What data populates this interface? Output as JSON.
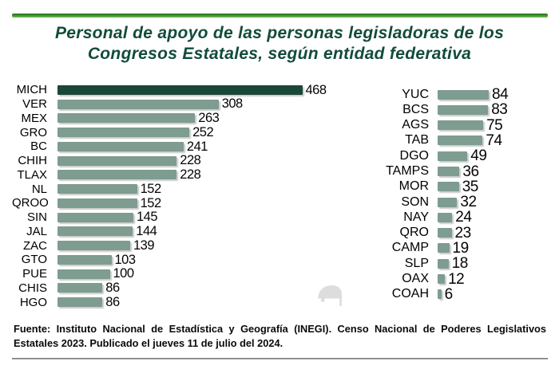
{
  "title": {
    "line1": "Personal de apoyo de las personas legisladoras de los",
    "line2": "Congresos Estatales, según entidad federativa"
  },
  "footer": {
    "line1": "Fuente: Instituto Nacional de Estadística y Geografía (INEGI). Censo Nacional de Poderes Legislativos",
    "line2": "Estatales 2023. Publicado el jueves 11 de julio del 2024."
  },
  "colors": {
    "title": "#124b3c",
    "top_rule": "#3b8d2b",
    "bar": "#7e9c90",
    "highlight_bar": "#1b4737",
    "bottom_rule": "#808080"
  },
  "icons": {
    "watermark": "turtle-silhouette-watermark"
  },
  "chart_data": {
    "type": "bar",
    "orientation": "horizontal",
    "title": "Personal de apoyo de las personas legisladoras de los Congresos Estatales, según entidad federativa",
    "xlabel": "",
    "ylabel": "",
    "grid": false,
    "legend": false,
    "value_range": [
      0,
      468
    ],
    "highlight_category": "MICH",
    "panels": [
      {
        "categories": [
          "MICH",
          "VER",
          "MEX",
          "GRO",
          "BC",
          "CHIH",
          "TLAX",
          "NL",
          "QROO",
          "SIN",
          "JAL",
          "ZAC",
          "GTO",
          "PUE",
          "CHIS",
          "HGO"
        ],
        "values": [
          468,
          308,
          263,
          252,
          241,
          228,
          228,
          152,
          152,
          145,
          144,
          139,
          103,
          100,
          86,
          86
        ]
      },
      {
        "categories": [
          "YUC",
          "BCS",
          "AGS",
          "TAB",
          "DGO",
          "TAMPS",
          "MOR",
          "SON",
          "NAY",
          "QRO",
          "CAMP",
          "SLP",
          "OAX",
          "COAH"
        ],
        "values": [
          84,
          83,
          75,
          74,
          49,
          36,
          35,
          32,
          24,
          23,
          19,
          18,
          12,
          6
        ]
      }
    ]
  }
}
